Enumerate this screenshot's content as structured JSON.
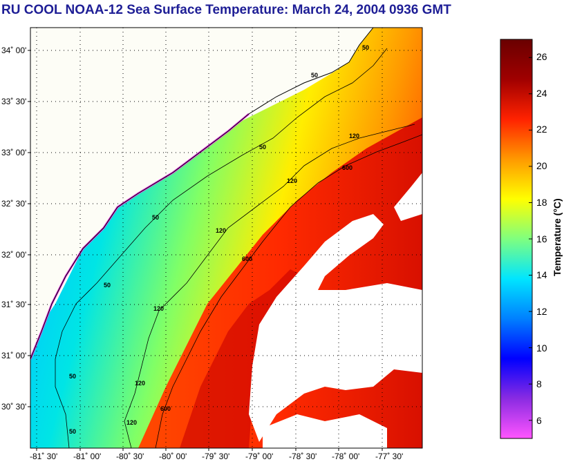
{
  "header": {
    "title": "RU COOL  NOAA-12  Sea Surface Temperature:  March 24, 2004 0936 GMT"
  },
  "map": {
    "lat_labels": [
      "34˚ 00'",
      "33˚ 30'",
      "33˚ 00'",
      "32˚ 30'",
      "32˚ 00'",
      "31˚ 30'",
      "31˚ 00'",
      "30˚ 30'"
    ],
    "lon_labels": [
      "-81˚ 30'",
      "-81˚ 00'",
      "-80˚ 30'",
      "-80˚ 00'",
      "-79˚ 30'",
      "-79˚ 00'",
      "-78˚ 30'",
      "-78˚ 00'",
      "-77˚ 30'"
    ],
    "contour_labels": [
      "50",
      "50",
      "50",
      "50",
      "50",
      "50",
      "50",
      "120",
      "120",
      "120",
      "120",
      "120",
      "120",
      "600",
      "600",
      "600"
    ],
    "land_color": "#fdfdf6",
    "cloud_color": "#ffffff"
  },
  "colorbar": {
    "title": "Temperature (°C)",
    "ticks": [
      "26",
      "24",
      "22",
      "20",
      "18",
      "16",
      "14",
      "12",
      "10",
      "8",
      "6"
    ],
    "range": [
      5,
      27
    ],
    "colors": [
      "#ff55ff",
      "#8a2be2",
      "#0000ff",
      "#0080ff",
      "#00e5ff",
      "#7fff7f",
      "#ffff00",
      "#ff9900",
      "#ff2200",
      "#a00000",
      "#6a0000"
    ]
  }
}
